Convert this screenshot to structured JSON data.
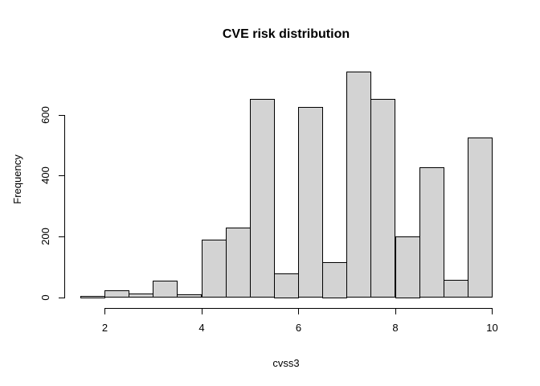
{
  "chart_data": {
    "type": "bar",
    "subtype": "histogram",
    "title": "CVE risk distribution",
    "xlabel": "cvss3",
    "ylabel": "Frequency",
    "bin_edges": [
      1.5,
      2.0,
      2.5,
      3.0,
      3.5,
      4.0,
      4.5,
      5.0,
      5.5,
      6.0,
      6.5,
      7.0,
      7.5,
      8.0,
      8.5,
      9.0,
      9.5,
      10.0
    ],
    "counts": [
      4,
      22,
      13,
      54,
      9,
      188,
      228,
      651,
      78,
      626,
      115,
      742,
      652,
      201,
      426,
      56,
      525
    ],
    "x_ticks": [
      2,
      4,
      6,
      8,
      10
    ],
    "y_ticks": [
      0,
      200,
      400,
      600
    ],
    "xlim": [
      1.5,
      10
    ],
    "ylim": [
      0,
      742
    ],
    "grid": false,
    "legend": null,
    "bar_fill_color": "#D3D3D3",
    "bar_border_color": "#000000",
    "axis_color": "#000000",
    "text_color": "#000000",
    "background_color": "#FFFFFF"
  }
}
